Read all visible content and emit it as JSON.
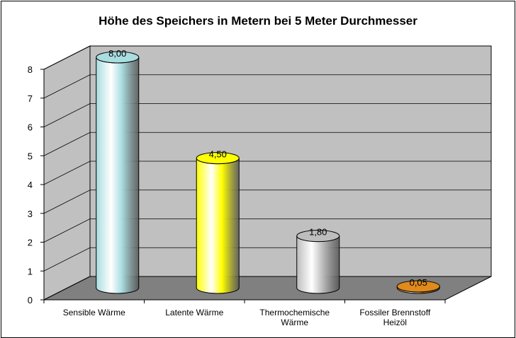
{
  "chart_data": {
    "type": "bar",
    "title": "Höhe des Speichers in Metern bei 5 Meter Durchmesser",
    "xlabel": "",
    "ylabel": "",
    "categories": [
      [
        "Sensible Wärme"
      ],
      [
        "Latente Wärme"
      ],
      [
        "Thermochemische",
        "Wärme"
      ],
      [
        "Fossiler Brennstoff",
        "Heizöl"
      ]
    ],
    "values": [
      8.0,
      4.5,
      1.8,
      0.05
    ],
    "data_labels": [
      "8,00",
      "4,50",
      "1,80",
      "0,05"
    ],
    "ylim": [
      0,
      8
    ],
    "yticks": [
      "0",
      "1",
      "2",
      "3",
      "4",
      "5",
      "6",
      "7",
      "8"
    ],
    "grid": true,
    "style": "3d-cylinder",
    "colors": {
      "bars": [
        "#a9dde0",
        "#ffff00",
        "#bdbdbd",
        "#e08a1c"
      ],
      "wall": "#c0c0c0",
      "floor": "#808080",
      "gridline": "#000000"
    }
  }
}
